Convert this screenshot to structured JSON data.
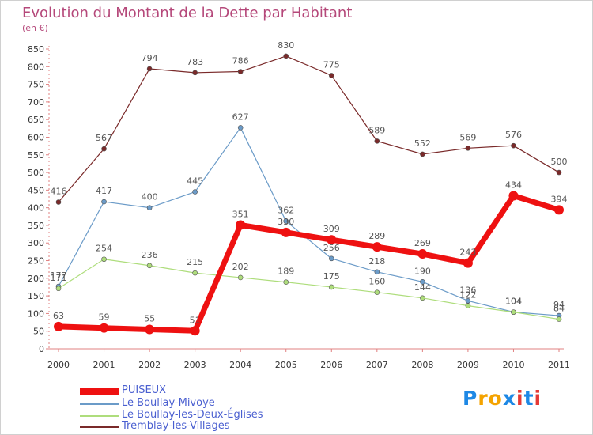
{
  "title": "Evolution du Montant de la Dette par Habitant",
  "subtitle": "(en €)",
  "chart_data": {
    "type": "line",
    "title": "Evolution du Montant de la Dette par Habitant",
    "subtitle": "(en €)",
    "xlabel": "",
    "ylabel": "",
    "categories": [
      "2000",
      "2001",
      "2002",
      "2003",
      "2004",
      "2005",
      "2006",
      "2007",
      "2008",
      "2009",
      "2010",
      "2011"
    ],
    "ylim": [
      0,
      850
    ],
    "yticks": [
      0,
      50,
      100,
      150,
      200,
      250,
      300,
      350,
      400,
      450,
      500,
      550,
      600,
      650,
      700,
      750,
      800,
      850
    ],
    "grid": false,
    "legend_position": "bottom",
    "series": [
      {
        "name": "PUISEUX",
        "color": "#ee1111",
        "values": [
          63,
          59,
          55,
          51,
          351,
          330,
          309,
          289,
          269,
          243,
          434,
          394
        ]
      },
      {
        "name": "Le Boullay-Mivoye",
        "color": "#6b9bc8",
        "values": [
          177,
          417,
          400,
          445,
          627,
          362,
          256,
          218,
          190,
          136,
          104,
          94
        ]
      },
      {
        "name": "Le Boullay-les-Deux-Églises",
        "color": "#aedd7c",
        "values": [
          171,
          254,
          236,
          215,
          202,
          189,
          175,
          160,
          144,
          122,
          104,
          84
        ]
      },
      {
        "name": "Tremblay-les-Villages",
        "color": "#7a2a2a",
        "values": [
          416,
          567,
          794,
          783,
          786,
          830,
          775,
          589,
          552,
          569,
          576,
          500
        ]
      }
    ]
  },
  "legend": {
    "items": [
      {
        "label": "PUISEUX",
        "color": "#ee1111"
      },
      {
        "label": "Le Boullay-Mivoye",
        "color": "#6b9bc8"
      },
      {
        "label": "Le Boullay-les-Deux-Églises",
        "color": "#aedd7c"
      },
      {
        "label": "Tremblay-les-Villages",
        "color": "#7a2a2a"
      }
    ]
  },
  "logo": {
    "text": "Proxiti",
    "letters": [
      "P",
      "r",
      "o",
      "x",
      "i",
      "t",
      "i"
    ],
    "colors": [
      "#1e88e5",
      "#f4a300",
      "#f4a300",
      "#1e88e5",
      "#e53935",
      "#1e88e5",
      "#e53935"
    ]
  }
}
